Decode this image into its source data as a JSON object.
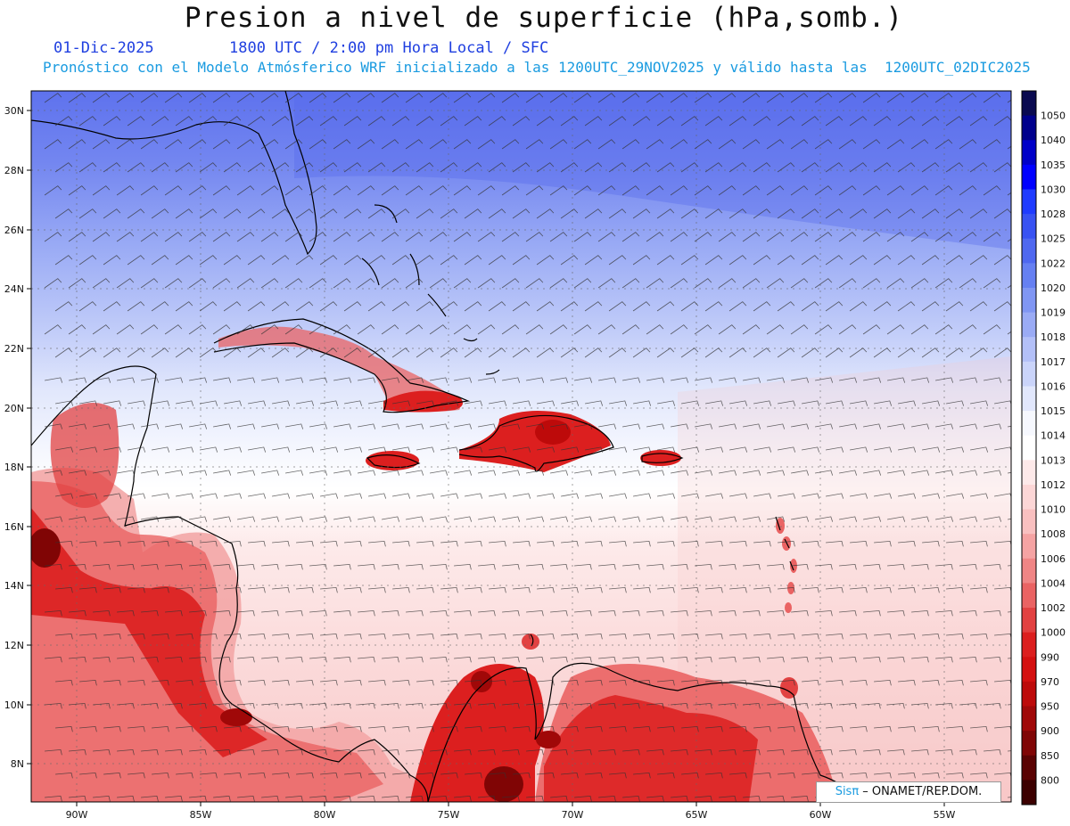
{
  "title": "Presion a nivel de superficie (hPa,somb.)",
  "date": "01-Dic-2025",
  "time_info": "1800 UTC / 2:00 pm Hora Local / SFC",
  "model_info": "Pronóstico con el Modelo Atmósferico WRF inicializado a las 1200UTC_29NOV2025 y válido hasta las  1200UTC_02DIC2025",
  "lat_labels": [
    "30N",
    "28N",
    "26N",
    "24N",
    "22N",
    "20N",
    "18N",
    "16N",
    "14N",
    "12N",
    "10N",
    "8N"
  ],
  "lon_labels": [
    "90W",
    "85W",
    "80W",
    "75W",
    "70W",
    "65W",
    "60W",
    "55W"
  ],
  "colorbar": {
    "levels": [
      "1050",
      "1040",
      "1035",
      "1030",
      "1028",
      "1025",
      "1022",
      "1020",
      "1019",
      "1018",
      "1017",
      "1016",
      "1015",
      "1014",
      "1013",
      "1012",
      "1010",
      "1008",
      "1006",
      "1004",
      "1002",
      "1000",
      "990",
      "970",
      "950",
      "900",
      "850",
      "800"
    ],
    "colors": [
      "#0a0a50",
      "#00008c",
      "#0000c8",
      "#0000ff",
      "#1f3bff",
      "#3852f2",
      "#4f68f0",
      "#6680f2",
      "#8096f3",
      "#9aabf5",
      "#b3c0f8",
      "#cad4fa",
      "#e1e7fc",
      "#f6f8fe",
      "#ffffff",
      "#fde9e9",
      "#fcd6d6",
      "#f9c0c0",
      "#f5a3a3",
      "#f08585",
      "#ea6363",
      "#e24141",
      "#dc1f1f",
      "#d41010",
      "#bd0a0a",
      "#a00808",
      "#800505",
      "#5a0202",
      "#3c0000"
    ]
  },
  "credit": {
    "brand": "Sisπ",
    "text": " – ONAMET/REP.DOM."
  },
  "colors": {
    "subtitle_blue": "#1f3fe0",
    "model_blue": "#1a9be0"
  }
}
